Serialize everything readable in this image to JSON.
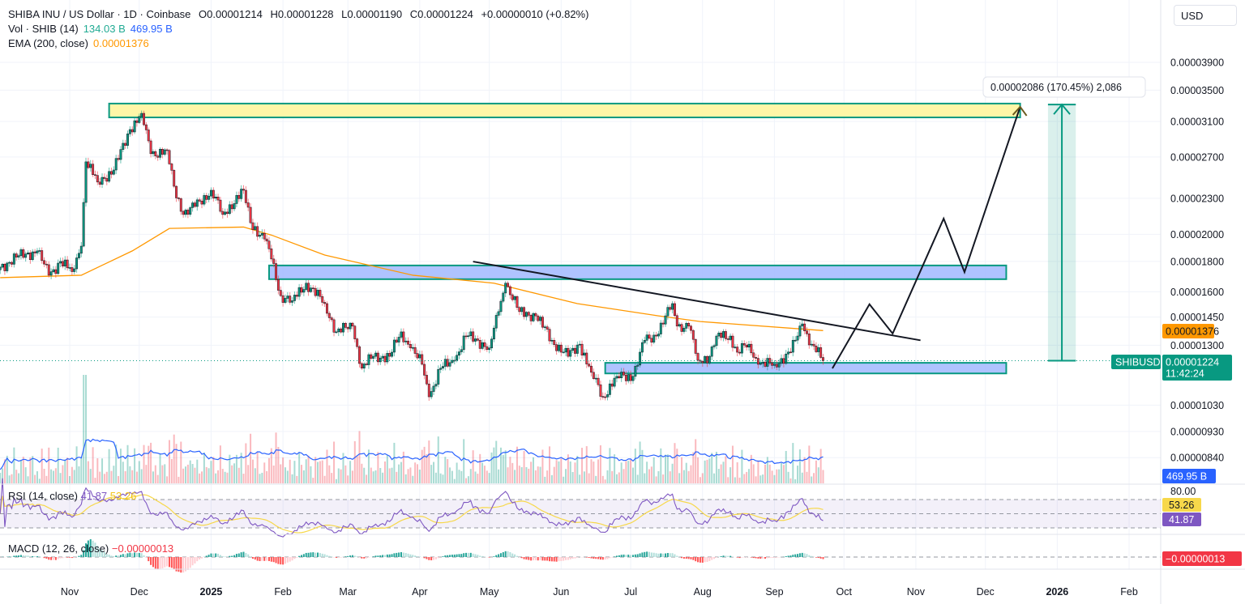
{
  "header": {
    "symbol_line": "SHIBA INU / US Dollar · 1D · Coinbase",
    "open": "O0.00001214",
    "high": "H0.00001228",
    "low": "L0.00001190",
    "close": "C0.00001224",
    "change": "+0.00000010 (+0.82%)",
    "volume_label": "Vol · SHIB (14)",
    "volume_value": "134.03 B",
    "volume_ma_value": "469.95 B",
    "ema_label": "EMA (200, close)",
    "ema_value": "0.00001376",
    "currency_button": "USD"
  },
  "indicators": {
    "rsi_label": "RSI (14, close)",
    "rsi_value": "41.87",
    "rsi_ma_value": "53.26",
    "rsi_level_label": "80.00",
    "macd_label": "MACD (12, 26, close)",
    "macd_value": "−0.00000013"
  },
  "price_tags": {
    "ema": "0.00001376",
    "symbol": "SHIBUSD",
    "last": "0.00001224",
    "countdown": "11:42:24",
    "volume_ma": "469.95 B",
    "rsi_ma": "53.26",
    "rsi": "41.87",
    "macd": "−0.00000013"
  },
  "colors": {
    "up": "#089981",
    "down": "#f23645",
    "ema": "#ff9800",
    "volume_ma": "#2962ff",
    "rsi": "#7e57c2",
    "rsi_ma": "#f7d84a",
    "zone_yellow": "#fff59d",
    "zone_blue": "#a6bcff",
    "zone_border": "#089981"
  },
  "chart_data": {
    "type": "candlestick",
    "title": "SHIBA INU / US Dollar · 1D · Coinbase",
    "y_scale": "log",
    "ylim": [
      8e-06,
      4.1e-05
    ],
    "y_ticks": [
      "0.00003900",
      "0.00003500",
      "0.00003100",
      "0.00002700",
      "0.00002300",
      "0.00002000",
      "0.00001800",
      "0.00001600",
      "0.00001450",
      "0.00001300",
      "0.00001030",
      "0.00000930",
      "0.00000840"
    ],
    "x_ticks": [
      {
        "date": "2024-11-01",
        "label": "Nov",
        "bold": false
      },
      {
        "date": "2024-12-01",
        "label": "Dec",
        "bold": false
      },
      {
        "date": "2025-01-01",
        "label": "2025",
        "bold": true
      },
      {
        "date": "2025-02-01",
        "label": "Feb",
        "bold": false
      },
      {
        "date": "2025-03-01",
        "label": "Mar",
        "bold": false
      },
      {
        "date": "2025-04-01",
        "label": "Apr",
        "bold": false
      },
      {
        "date": "2025-05-01",
        "label": "May",
        "bold": false
      },
      {
        "date": "2025-06-01",
        "label": "Jun",
        "bold": false
      },
      {
        "date": "2025-07-01",
        "label": "Jul",
        "bold": false
      },
      {
        "date": "2025-08-01",
        "label": "Aug",
        "bold": false
      },
      {
        "date": "2025-09-01",
        "label": "Sep",
        "bold": false
      },
      {
        "date": "2025-10-01",
        "label": "Oct",
        "bold": false
      },
      {
        "date": "2025-11-01",
        "label": "Nov",
        "bold": false
      },
      {
        "date": "2025-12-01",
        "label": "Dec",
        "bold": false
      },
      {
        "date": "2026-01-01",
        "label": "2026",
        "bold": true
      },
      {
        "date": "2026-02-01",
        "label": "Feb",
        "bold": false
      }
    ],
    "approx_closes": [
      [
        "2024-10-02",
        1.76e-05
      ],
      [
        "2024-10-09",
        1.83e-05
      ],
      [
        "2024-10-18",
        1.875e-05
      ],
      [
        "2024-10-23",
        1.706e-05
      ],
      [
        "2024-10-28",
        1.8e-05
      ],
      [
        "2024-11-02",
        1.73e-05
      ],
      [
        "2024-11-06",
        1.91e-05
      ],
      [
        "2024-11-08",
        2.65e-05
      ],
      [
        "2024-11-13",
        2.45e-05
      ],
      [
        "2024-11-20",
        2.567e-05
      ],
      [
        "2024-11-27",
        3.004e-05
      ],
      [
        "2024-12-02",
        3.199e-05
      ],
      [
        "2024-12-06",
        2.735e-05
      ],
      [
        "2024-12-13",
        2.77e-05
      ],
      [
        "2024-12-16",
        2.41e-05
      ],
      [
        "2024-12-20",
        2.16e-05
      ],
      [
        "2024-12-25",
        2.228e-05
      ],
      [
        "2025-01-01",
        2.373e-05
      ],
      [
        "2025-01-06",
        2.16e-05
      ],
      [
        "2025-01-15",
        2.373e-05
      ],
      [
        "2025-01-18",
        2.092e-05
      ],
      [
        "2025-01-24",
        1.964e-05
      ],
      [
        "2025-01-27",
        1.817e-05
      ],
      [
        "2025-01-31",
        1.576e-05
      ],
      [
        "2025-02-05",
        1.545e-05
      ],
      [
        "2025-02-11",
        1.654e-05
      ],
      [
        "2025-02-19",
        1.528e-05
      ],
      [
        "2025-02-24",
        1.369e-05
      ],
      [
        "2025-03-03",
        1.4e-05
      ],
      [
        "2025-03-07",
        1.189e-05
      ],
      [
        "2025-03-12",
        1.245e-05
      ],
      [
        "2025-03-19",
        1.245e-05
      ],
      [
        "2025-03-24",
        1.369e-05
      ],
      [
        "2025-03-28",
        1.286e-05
      ],
      [
        "2025-04-02",
        1.207e-05
      ],
      [
        "2025-04-05",
        1.064e-05
      ],
      [
        "2025-04-10",
        1.189e-05
      ],
      [
        "2025-04-16",
        1.226e-05
      ],
      [
        "2025-04-21",
        1.347e-05
      ],
      [
        "2025-04-26",
        1.325e-05
      ],
      [
        "2025-05-01",
        1.286e-05
      ],
      [
        "2025-05-05",
        1.481e-05
      ],
      [
        "2025-05-08",
        1.654e-05
      ],
      [
        "2025-05-14",
        1.481e-05
      ],
      [
        "2025-05-21",
        1.457e-05
      ],
      [
        "2025-05-28",
        1.325e-05
      ],
      [
        "2025-06-04",
        1.245e-05
      ],
      [
        "2025-06-09",
        1.305e-05
      ],
      [
        "2025-06-14",
        1.17e-05
      ],
      [
        "2025-06-19",
        1.064e-05
      ],
      [
        "2025-06-25",
        1.152e-05
      ],
      [
        "2025-07-02",
        1.152e-05
      ],
      [
        "2025-07-07",
        1.325e-05
      ],
      [
        "2025-07-12",
        1.347e-05
      ],
      [
        "2025-07-16",
        1.457e-05
      ],
      [
        "2025-07-19",
        1.528e-05
      ],
      [
        "2025-07-21",
        1.4e-05
      ],
      [
        "2025-07-26",
        1.4e-05
      ],
      [
        "2025-07-30",
        1.226e-05
      ],
      [
        "2025-08-04",
        1.245e-05
      ],
      [
        "2025-08-07",
        1.347e-05
      ],
      [
        "2025-08-13",
        1.347e-05
      ],
      [
        "2025-08-16",
        1.265e-05
      ],
      [
        "2025-08-21",
        1.305e-05
      ],
      [
        "2025-08-25",
        1.207e-05
      ],
      [
        "2025-09-01",
        1.207e-05
      ],
      [
        "2025-09-08",
        1.265e-05
      ],
      [
        "2025-09-13",
        1.412e-05
      ],
      [
        "2025-09-17",
        1.305e-05
      ],
      [
        "2025-09-22",
        1.224e-05
      ]
    ],
    "ema200": [
      [
        "2024-10-02",
        1.69e-05
      ],
      [
        "2024-11-06",
        1.706e-05
      ],
      [
        "2024-11-28",
        1.875e-05
      ],
      [
        "2024-12-14",
        2.046e-05
      ],
      [
        "2025-01-15",
        2.057e-05
      ],
      [
        "2025-01-27",
        1.994e-05
      ],
      [
        "2025-02-19",
        1.845e-05
      ],
      [
        "2025-03-29",
        1.706e-05
      ],
      [
        "2025-05-03",
        1.654e-05
      ],
      [
        "2025-06-08",
        1.528e-05
      ],
      [
        "2025-07-13",
        1.457e-05
      ],
      [
        "2025-07-31",
        1.425e-05
      ],
      [
        "2025-09-22",
        1.376e-05
      ]
    ],
    "last_price": 1.224e-05,
    "rsi_levels": [
      70,
      50,
      30
    ],
    "drawings": {
      "zones": [
        {
          "from": "2024-11-18",
          "to": "2025-12-16",
          "low": 3.149e-05,
          "high": 3.323e-05,
          "color": "yellow"
        },
        {
          "from": "2025-01-26",
          "to": "2025-12-10",
          "low": 1.68e-05,
          "high": 1.772e-05,
          "color": "blue"
        },
        {
          "from": "2025-06-20",
          "to": "2025-12-10",
          "low": 1.165e-05,
          "high": 1.214e-05,
          "color": "blue"
        }
      ],
      "trendline": [
        [
          "2025-04-24",
          1.799e-05
        ],
        [
          "2025-11-03",
          1.325e-05
        ]
      ],
      "projection": [
        [
          "2025-09-26",
          1.188e-05
        ],
        [
          "2025-10-12",
          1.524e-05
        ],
        [
          "2025-10-22",
          1.36e-05
        ],
        [
          "2025-11-13",
          2.126e-05
        ],
        [
          "2025-11-22",
          1.727e-05
        ],
        [
          "2025-12-16",
          3.281e-05
        ]
      ],
      "measure": {
        "from": "2025-12-28",
        "to": "2026-01-09",
        "low": 1.224e-05,
        "high": 3.31e-05,
        "label": "0.00002086 (170.45%) 2,086"
      }
    }
  }
}
